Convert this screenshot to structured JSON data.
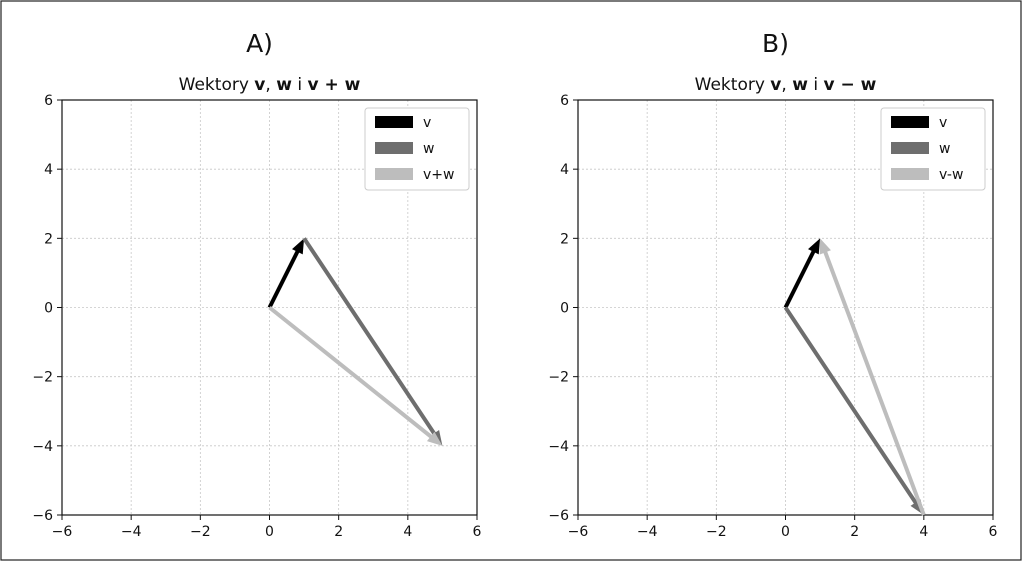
{
  "chart_data": [
    {
      "type": "vector",
      "panel_label": "A)",
      "title_parts": [
        {
          "text": "Wektory ",
          "bold": false
        },
        {
          "text": "v",
          "bold": true
        },
        {
          "text": ", ",
          "bold": false
        },
        {
          "text": "w",
          "bold": true
        },
        {
          "text": " i ",
          "bold": false
        },
        {
          "text": "v + w",
          "bold": true
        }
      ],
      "xlim": [
        -6,
        6
      ],
      "ylim": [
        -6,
        6
      ],
      "xticks": [
        -6,
        -4,
        -2,
        0,
        2,
        4,
        6
      ],
      "yticks": [
        -6,
        -4,
        -2,
        0,
        2,
        4,
        6
      ],
      "xtick_labels": [
        "−6",
        "−4",
        "−2",
        "0",
        "2",
        "4",
        "6"
      ],
      "ytick_labels": [
        "−6",
        "−4",
        "−2",
        "0",
        "2",
        "4",
        "6"
      ],
      "grid": true,
      "legend_position": "top-right",
      "series": [
        {
          "name": "v",
          "color": "#000000",
          "start": [
            0,
            0
          ],
          "end": [
            1,
            2
          ]
        },
        {
          "name": "w",
          "color": "#6e6e6e",
          "start": [
            1,
            2
          ],
          "end": [
            5,
            -4
          ]
        },
        {
          "name": "v+w",
          "color": "#bdbdbd",
          "start": [
            0,
            0
          ],
          "end": [
            5,
            -4
          ]
        }
      ]
    },
    {
      "type": "vector",
      "panel_label": "B)",
      "title_parts": [
        {
          "text": "Wektory ",
          "bold": false
        },
        {
          "text": "v",
          "bold": true
        },
        {
          "text": ", ",
          "bold": false
        },
        {
          "text": "w",
          "bold": true
        },
        {
          "text": " i ",
          "bold": false
        },
        {
          "text": "v − w",
          "bold": true
        }
      ],
      "xlim": [
        -6,
        6
      ],
      "ylim": [
        -6,
        6
      ],
      "xticks": [
        -6,
        -4,
        -2,
        0,
        2,
        4,
        6
      ],
      "yticks": [
        -6,
        -4,
        -2,
        0,
        2,
        4,
        6
      ],
      "xtick_labels": [
        "−6",
        "−4",
        "−2",
        "0",
        "2",
        "4",
        "6"
      ],
      "ytick_labels": [
        "−6",
        "−4",
        "−2",
        "0",
        "2",
        "4",
        "6"
      ],
      "grid": true,
      "legend_position": "top-right",
      "series": [
        {
          "name": "v",
          "color": "#000000",
          "start": [
            0,
            0
          ],
          "end": [
            1,
            2
          ]
        },
        {
          "name": "w",
          "color": "#6e6e6e",
          "start": [
            0,
            0
          ],
          "end": [
            4,
            -6
          ]
        },
        {
          "name": "v-w",
          "color": "#bdbdbd",
          "start": [
            4,
            -6
          ],
          "end": [
            1,
            2
          ]
        }
      ]
    }
  ]
}
